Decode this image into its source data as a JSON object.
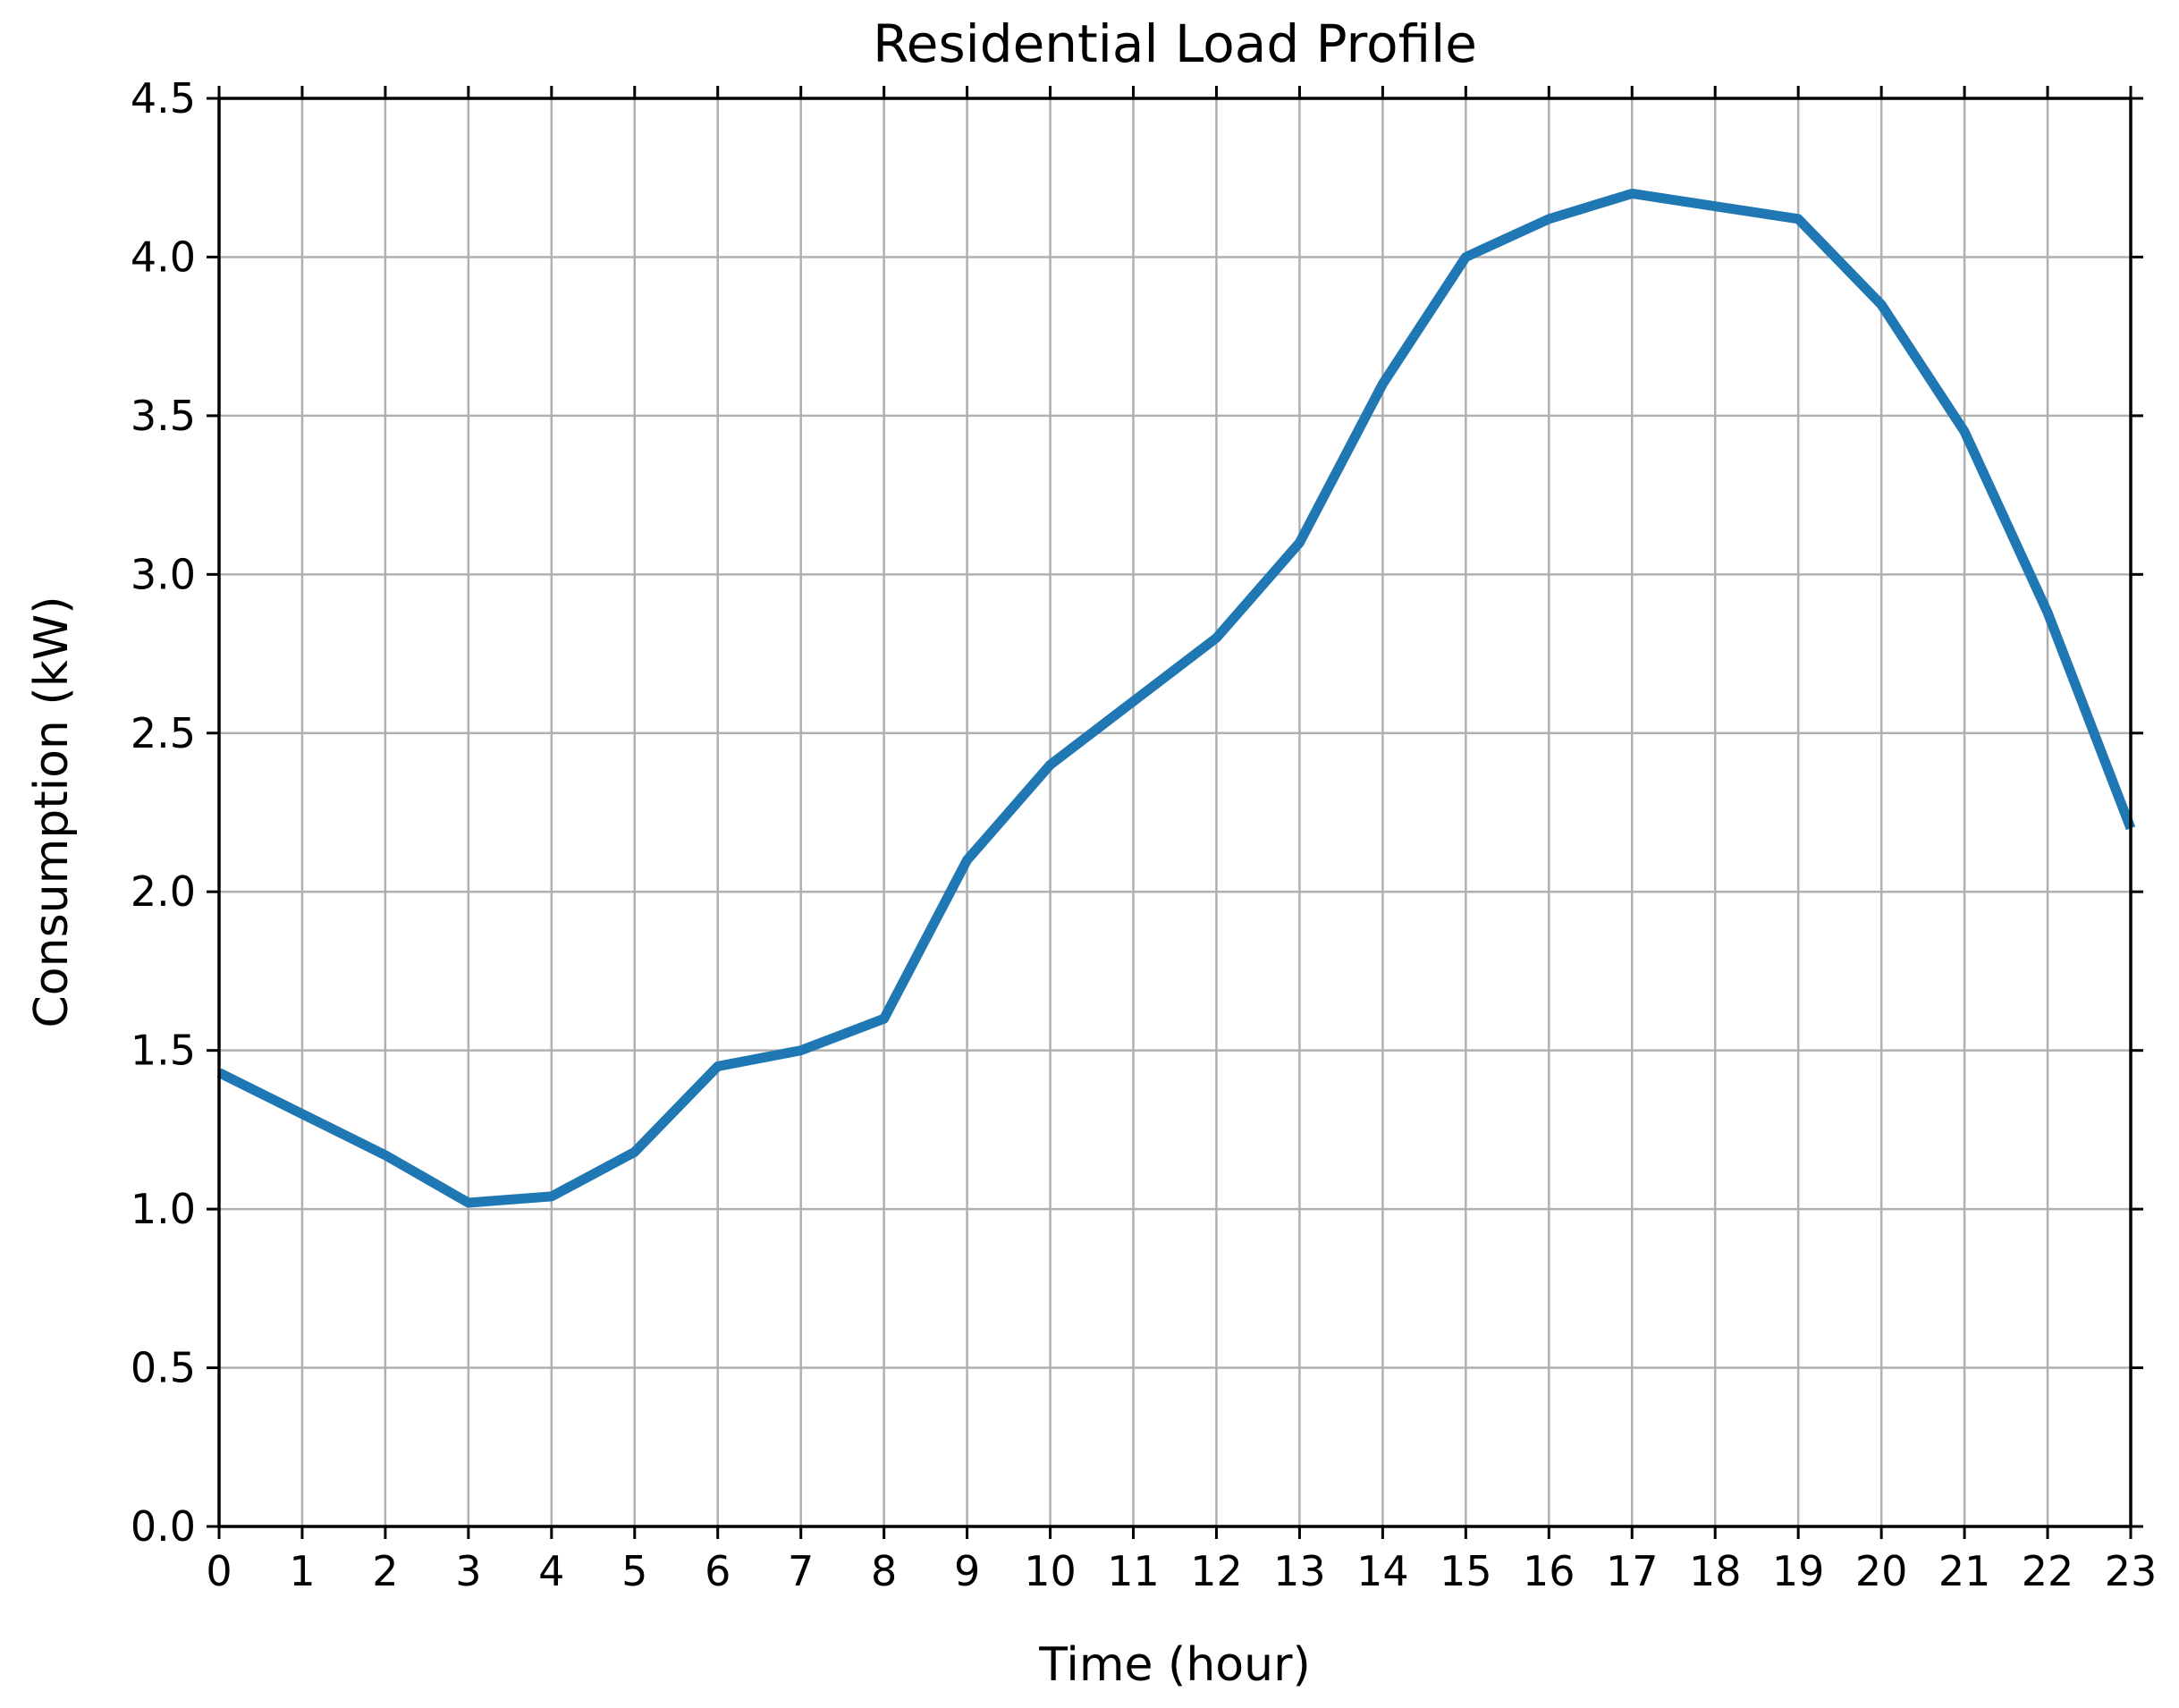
{
  "chart_data": {
    "type": "line",
    "title": "Residential Load Profile",
    "xlabel": "Time (hour)",
    "ylabel": "Consumption (kW)",
    "series": [
      {
        "name": "consumption",
        "x": [
          0,
          1,
          2,
          3,
          4,
          5,
          6,
          7,
          8,
          9,
          10,
          11,
          12,
          13,
          14,
          15,
          16,
          17,
          18,
          19,
          20,
          21,
          22,
          23
        ],
        "values": [
          1.43,
          1.3,
          1.17,
          1.02,
          1.04,
          1.18,
          1.45,
          1.5,
          1.6,
          2.1,
          2.4,
          2.6,
          2.8,
          3.1,
          3.6,
          4.0,
          4.12,
          4.2,
          4.16,
          4.12,
          3.85,
          3.45,
          2.88,
          2.2
        ]
      }
    ],
    "xlim": [
      0,
      23
    ],
    "ylim": [
      0,
      4.5
    ],
    "xtick_step": 1,
    "ytick_step": 0.5,
    "x_tick_labels": [
      "0",
      "1",
      "2",
      "3",
      "4",
      "5",
      "6",
      "7",
      "8",
      "9",
      "10",
      "11",
      "12",
      "13",
      "14",
      "15",
      "16",
      "17",
      "18",
      "19",
      "20",
      "21",
      "22",
      "23"
    ],
    "y_tick_labels": [
      "0.0",
      "0.5",
      "1.0",
      "1.5",
      "2.0",
      "2.5",
      "3.0",
      "3.5",
      "4.0",
      "4.5"
    ],
    "grid": true,
    "legend_position": "none",
    "line_color": "#1f77b4",
    "grid_color": "#b0b0b0",
    "spine_color": "#000000",
    "tick_color": "#000000",
    "background_color": "#ffffff"
  }
}
